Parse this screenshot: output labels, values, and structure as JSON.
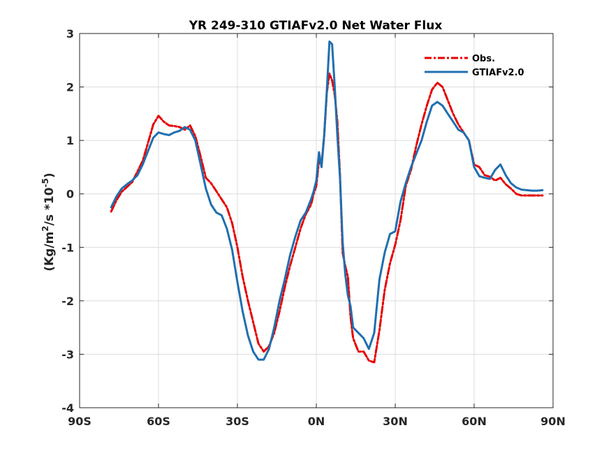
{
  "chart_data": {
    "type": "line",
    "title": "YR 249-310 GTIAFv2.0  Net Water Flux",
    "xlabel": "",
    "ylabel": {
      "prefix": "(Kg/m",
      "sup1": "2",
      "middle": "/s *10",
      "sup2": "-5",
      "suffix": ")"
    },
    "xlim": [
      -90,
      90
    ],
    "ylim": [
      -4,
      3
    ],
    "x_ticks": [
      {
        "value": -90,
        "label": "90S"
      },
      {
        "value": -60,
        "label": "60S"
      },
      {
        "value": -30,
        "label": "30S"
      },
      {
        "value": 0,
        "label": "0N"
      },
      {
        "value": 30,
        "label": "30N"
      },
      {
        "value": 60,
        "label": "60N"
      },
      {
        "value": 90,
        "label": "90N"
      }
    ],
    "y_ticks": [
      {
        "value": 3,
        "label": "3"
      },
      {
        "value": 2,
        "label": "2"
      },
      {
        "value": 1,
        "label": "1"
      },
      {
        "value": 0,
        "label": "0"
      },
      {
        "value": -1,
        "label": "-1"
      },
      {
        "value": -2,
        "label": "-2"
      },
      {
        "value": -3,
        "label": "-3"
      },
      {
        "value": -4,
        "label": "-4"
      }
    ],
    "grid": true,
    "legend_position": "top-right",
    "series": [
      {
        "name": "Obs.",
        "color": "#e60000",
        "style": "dash-dot",
        "x": [
          -78,
          -76,
          -74,
          -72,
          -70,
          -68,
          -66,
          -64,
          -62,
          -60,
          -58,
          -56,
          -54,
          -52,
          -50,
          -48,
          -46,
          -44,
          -42,
          -40,
          -38,
          -36,
          -34,
          -32,
          -30,
          -28,
          -26,
          -24,
          -22,
          -20,
          -18,
          -16,
          -14,
          -12,
          -10,
          -8,
          -6,
          -4,
          -2,
          -1,
          0,
          1,
          2,
          3,
          4,
          5,
          6,
          7,
          8,
          9,
          10,
          11,
          12,
          13,
          14,
          16,
          18,
          20,
          22,
          24,
          26,
          28,
          30,
          32,
          34,
          36,
          38,
          40,
          42,
          44,
          46,
          48,
          50,
          52,
          54,
          56,
          58,
          60,
          62,
          64,
          66,
          68,
          70,
          72,
          74,
          76,
          78,
          80,
          82,
          84,
          86
        ],
        "y": [
          -0.33,
          -0.12,
          0.04,
          0.13,
          0.22,
          0.42,
          0.62,
          0.95,
          1.3,
          1.46,
          1.35,
          1.28,
          1.27,
          1.25,
          1.2,
          1.28,
          1.08,
          0.7,
          0.3,
          0.2,
          0.05,
          -0.1,
          -0.25,
          -0.55,
          -1.0,
          -1.55,
          -2.0,
          -2.4,
          -2.8,
          -2.95,
          -2.85,
          -2.6,
          -2.2,
          -1.75,
          -1.35,
          -1.0,
          -0.65,
          -0.38,
          -0.2,
          0.0,
          0.15,
          0.62,
          0.55,
          1.1,
          1.9,
          2.25,
          2.12,
          1.85,
          1.35,
          0.35,
          -1.1,
          -1.35,
          -1.55,
          -2.3,
          -2.7,
          -2.95,
          -2.95,
          -3.12,
          -3.15,
          -2.55,
          -1.8,
          -1.3,
          -0.95,
          -0.5,
          0.15,
          0.45,
          0.9,
          1.3,
          1.65,
          1.95,
          2.08,
          2.0,
          1.75,
          1.5,
          1.3,
          1.15,
          1.0,
          0.55,
          0.5,
          0.35,
          0.32,
          0.25,
          0.3,
          0.18,
          0.1,
          0.0,
          -0.03,
          -0.03,
          -0.03,
          -0.03,
          -0.03
        ]
      },
      {
        "name": "GTIAFv2.0",
        "color": "#1f6fb0",
        "style": "solid",
        "x": [
          -78,
          -76,
          -74,
          -72,
          -70,
          -68,
          -66,
          -64,
          -62,
          -60,
          -58,
          -56,
          -54,
          -52,
          -50,
          -48,
          -46,
          -44,
          -42,
          -40,
          -38,
          -36,
          -34,
          -32,
          -30,
          -28,
          -26,
          -24,
          -22,
          -20,
          -18,
          -16,
          -14,
          -12,
          -10,
          -8,
          -6,
          -4,
          -2,
          -1,
          0,
          1,
          2,
          3,
          4,
          5,
          6,
          7,
          8,
          9,
          10,
          11,
          12,
          13,
          14,
          16,
          18,
          20,
          22,
          24,
          26,
          28,
          30,
          32,
          34,
          36,
          38,
          40,
          42,
          44,
          46,
          48,
          50,
          52,
          54,
          56,
          58,
          60,
          62,
          64,
          66,
          68,
          70,
          72,
          74,
          76,
          78,
          80,
          82,
          84,
          86
        ],
        "y": [
          -0.25,
          -0.05,
          0.1,
          0.18,
          0.25,
          0.35,
          0.55,
          0.8,
          1.05,
          1.15,
          1.12,
          1.1,
          1.15,
          1.18,
          1.25,
          1.2,
          1.0,
          0.55,
          0.1,
          -0.2,
          -0.35,
          -0.4,
          -0.65,
          -1.05,
          -1.65,
          -2.2,
          -2.65,
          -2.95,
          -3.1,
          -3.1,
          -2.9,
          -2.5,
          -2.0,
          -1.6,
          -1.15,
          -0.8,
          -0.5,
          -0.35,
          -0.1,
          0.05,
          0.25,
          0.78,
          0.5,
          1.1,
          1.95,
          2.85,
          2.8,
          2.0,
          1.1,
          0.3,
          -0.9,
          -1.5,
          -1.9,
          -2.1,
          -2.5,
          -2.6,
          -2.7,
          -2.9,
          -2.6,
          -1.6,
          -1.1,
          -0.75,
          -0.7,
          -0.15,
          0.2,
          0.5,
          0.75,
          1.0,
          1.35,
          1.65,
          1.72,
          1.65,
          1.5,
          1.35,
          1.2,
          1.15,
          1.0,
          0.5,
          0.33,
          0.3,
          0.28,
          0.45,
          0.55,
          0.35,
          0.2,
          0.12,
          0.08,
          0.07,
          0.06,
          0.06,
          0.07
        ]
      }
    ]
  }
}
